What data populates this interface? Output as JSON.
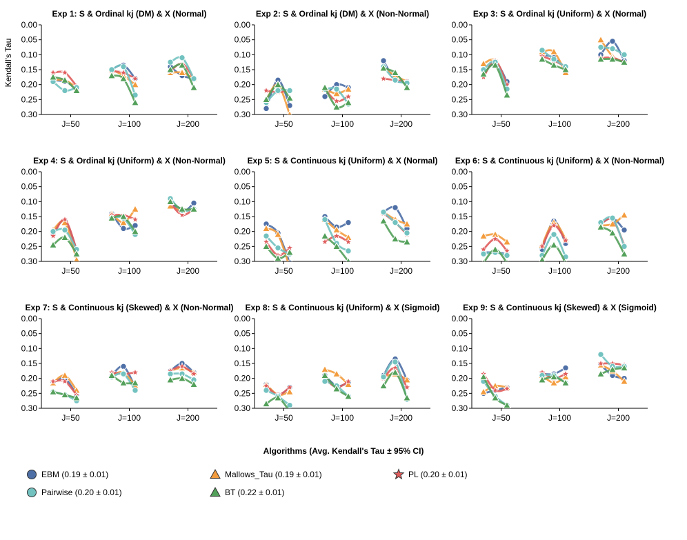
{
  "chart_data": {
    "type": "line",
    "ylabel": "Kendall's Tau",
    "y_inverted": true,
    "ylim": [
      0.3,
      0.0
    ],
    "yticks": [
      "0.00",
      "0.05",
      "0.10",
      "0.15",
      "0.20",
      "0.25",
      "0.30"
    ],
    "categories": [
      "J=50",
      "J=100",
      "J=200"
    ],
    "x_within_group": [
      0.1,
      0.3,
      0.5
    ],
    "series_order": [
      "EBM",
      "Mallows_Tau",
      "PL",
      "Pairwise",
      "BT"
    ],
    "colors": {
      "EBM": "#4e6fa6",
      "Mallows_Tau": "#f39c3e",
      "PL": "#e05c5c",
      "Pairwise": "#72c2c0",
      "BT": "#53a05a"
    },
    "markers": {
      "EBM": "circle",
      "Mallows_Tau": "triangle",
      "PL": "star",
      "Pairwise": "circle",
      "BT": "triangle"
    },
    "panels": [
      {
        "title": "Exp 1: S & Ordinal kj (DM) & X (Normal)",
        "series": {
          "EBM": [
            [
              0.185,
              0.19,
              0.21
            ],
            [
              0.15,
              0.135,
              0.18
            ],
            [
              0.14,
              0.17,
              0.18
            ]
          ],
          "Mallows_Tau": [
            [
              0.185,
              0.185,
              0.21
            ],
            [
              0.15,
              0.17,
              0.2
            ],
            [
              0.16,
              0.16,
              0.18
            ]
          ],
          "PL": [
            [
              0.16,
              0.16,
              0.205
            ],
            [
              0.155,
              0.16,
              0.18
            ],
            [
              0.155,
              0.13,
              0.18
            ]
          ],
          "Pairwise": [
            [
              0.19,
              0.22,
              0.21
            ],
            [
              0.15,
              0.14,
              0.235
            ],
            [
              0.125,
              0.11,
              0.18
            ]
          ],
          "BT": [
            [
              0.175,
              0.185,
              0.22
            ],
            [
              0.17,
              0.18,
              0.26
            ],
            [
              0.15,
              0.135,
              0.21
            ]
          ]
        }
      },
      {
        "title": "Exp 2: S & Ordinal kj (DM) & X (Non-Normal)",
        "series": {
          "EBM": [
            [
              0.28,
              0.185,
              0.27
            ],
            [
              0.24,
              0.2,
              0.21
            ],
            [
              0.12,
              0.185,
              0.19
            ]
          ],
          "Mallows_Tau": [
            [
              0.25,
              0.2,
              0.3
            ],
            [
              0.215,
              0.23,
              0.215
            ],
            [
              0.145,
              0.17,
              0.19
            ]
          ],
          "PL": [
            [
              0.22,
              0.225,
              0.22
            ],
            [
              0.215,
              0.255,
              0.24
            ],
            [
              0.18,
              0.185,
              0.19
            ]
          ],
          "Pairwise": [
            [
              0.26,
              0.22,
              0.22
            ],
            [
              0.215,
              0.215,
              0.265
            ],
            [
              0.14,
              0.185,
              0.195
            ]
          ],
          "BT": [
            [
              0.25,
              0.2,
              0.245
            ],
            [
              0.21,
              0.275,
              0.26
            ],
            [
              0.145,
              0.16,
              0.21
            ]
          ]
        }
      },
      {
        "title": "Exp 3: S & Ordinal kj (Uniform) & X (Normal)",
        "series": {
          "EBM": [
            [
              0.17,
              0.125,
              0.19
            ],
            [
              0.1,
              0.11,
              0.145
            ],
            [
              0.1,
              0.055,
              0.12
            ]
          ],
          "Mallows_Tau": [
            [
              0.13,
              0.12,
              0.205
            ],
            [
              0.09,
              0.09,
              0.16
            ],
            [
              0.05,
              0.105,
              0.125
            ]
          ],
          "PL": [
            [
              0.175,
              0.12,
              0.2
            ],
            [
              0.105,
              0.12,
              0.14
            ],
            [
              0.11,
              0.11,
              0.125
            ]
          ],
          "Pairwise": [
            [
              0.15,
              0.125,
              0.215
            ],
            [
              0.085,
              0.115,
              0.14
            ],
            [
              0.075,
              0.08,
              0.1
            ]
          ],
          "BT": [
            [
              0.165,
              0.135,
              0.235
            ],
            [
              0.115,
              0.135,
              0.15
            ],
            [
              0.115,
              0.115,
              0.125
            ]
          ]
        }
      },
      {
        "title": "Exp 4: S & Ordinal kj (Uniform) & X (Non-Normal)",
        "series": {
          "EBM": [
            [
              0.205,
              0.165,
              0.26
            ],
            [
              0.14,
              0.19,
              0.18
            ],
            [
              0.095,
              0.135,
              0.105
            ]
          ],
          "Mallows_Tau": [
            [
              0.195,
              0.17,
              0.295
            ],
            [
              0.14,
              0.17,
              0.125
            ],
            [
              0.115,
              0.13,
              0.125
            ]
          ],
          "PL": [
            [
              0.215,
              0.16,
              0.26
            ],
            [
              0.145,
              0.145,
              0.16
            ],
            [
              0.105,
              0.145,
              0.125
            ]
          ],
          "Pairwise": [
            [
              0.2,
              0.195,
              0.26
            ],
            [
              0.155,
              0.155,
              0.21
            ],
            [
              0.09,
              0.13,
              0.125
            ]
          ],
          "BT": [
            [
              0.245,
              0.22,
              0.275
            ],
            [
              0.155,
              0.15,
              0.2
            ],
            [
              0.1,
              0.125,
              0.125
            ]
          ]
        }
      },
      {
        "title": "Exp 5: S & Continuous kj (Uniform) & X (Normal)",
        "series": {
          "EBM": [
            [
              0.175,
              0.205,
              0.305
            ],
            [
              0.15,
              0.185,
              0.17
            ],
            [
              0.135,
              0.12,
              0.19
            ]
          ],
          "Mallows_Tau": [
            [
              0.19,
              0.21,
              0.32
            ],
            [
              0.16,
              0.195,
              0.22
            ],
            [
              0.135,
              0.16,
              0.175
            ]
          ],
          "PL": [
            [
              0.235,
              0.28,
              0.255
            ],
            [
              0.235,
              0.215,
              0.235
            ],
            [
              0.14,
              0.17,
              0.21
            ]
          ],
          "Pairwise": [
            [
              0.215,
              0.255,
              0.275
            ],
            [
              0.16,
              0.24,
              0.265
            ],
            [
              0.135,
              0.17,
              0.205
            ]
          ],
          "BT": [
            [
              0.25,
              0.29,
              0.27
            ],
            [
              0.215,
              0.25,
              0.3
            ],
            [
              0.165,
              0.225,
              0.235
            ]
          ]
        }
      },
      {
        "title": "Exp 6: S & Continuous kj (Uniform) & X (Non-Normal)",
        "series": {
          "EBM": [
            [
              0.27,
              0.27,
              0.275
            ],
            [
              0.26,
              0.165,
              0.24
            ],
            [
              0.175,
              0.155,
              0.195
            ]
          ],
          "Mallows_Tau": [
            [
              0.215,
              0.21,
              0.235
            ],
            [
              0.245,
              0.17,
              0.225
            ],
            [
              0.18,
              0.175,
              0.145
            ]
          ],
          "PL": [
            [
              0.26,
              0.225,
              0.265
            ],
            [
              0.25,
              0.18,
              0.23
            ],
            [
              0.175,
              0.16,
              0.245
            ]
          ],
          "Pairwise": [
            [
              0.275,
              0.27,
              0.28
            ],
            [
              0.28,
              0.21,
              0.285
            ],
            [
              0.17,
              0.155,
              0.25
            ]
          ],
          "BT": [
            [
              0.305,
              0.26,
              0.305
            ],
            [
              0.295,
              0.245,
              0.305
            ],
            [
              0.185,
              0.205,
              0.275
            ]
          ]
        }
      },
      {
        "title": "Exp 7: S & Continuous kj (Skewed) & X (Non-Normal)",
        "series": {
          "EBM": [
            [
              0.215,
              0.2,
              0.255
            ],
            [
              0.19,
              0.16,
              0.23
            ],
            [
              0.175,
              0.15,
              0.18
            ]
          ],
          "Mallows_Tau": [
            [
              0.215,
              0.19,
              0.24
            ],
            [
              0.19,
              0.18,
              0.225
            ],
            [
              0.175,
              0.165,
              0.18
            ]
          ],
          "PL": [
            [
              0.21,
              0.21,
              0.255
            ],
            [
              0.18,
              0.185,
              0.18
            ],
            [
              0.175,
              0.16,
              0.185
            ]
          ],
          "Pairwise": [
            [
              0.245,
              0.255,
              0.275
            ],
            [
              0.195,
              0.185,
              0.24
            ],
            [
              0.185,
              0.185,
              0.205
            ]
          ],
          "BT": [
            [
              0.245,
              0.255,
              0.265
            ],
            [
              0.19,
              0.215,
              0.215
            ],
            [
              0.205,
              0.2,
              0.22
            ]
          ]
        }
      },
      {
        "title": "Exp 8: S & Continuous kj (Uniform) & X (Sigmoid)",
        "series": {
          "EBM": [
            [
              0.22,
              0.255,
              0.23
            ],
            [
              0.19,
              0.225,
              0.215
            ],
            [
              0.19,
              0.135,
              0.205
            ]
          ],
          "Mallows_Tau": [
            [
              0.22,
              0.255,
              0.245
            ],
            [
              0.17,
              0.185,
              0.22
            ],
            [
              0.195,
              0.185,
              0.205
            ]
          ],
          "PL": [
            [
              0.225,
              0.255,
              0.23
            ],
            [
              0.2,
              0.23,
              0.21
            ],
            [
              0.2,
              0.165,
              0.23
            ]
          ],
          "Pairwise": [
            [
              0.24,
              0.26,
              0.29
            ],
            [
              0.21,
              0.225,
              0.26
            ],
            [
              0.195,
              0.145,
              0.27
            ]
          ],
          "BT": [
            [
              0.285,
              0.265,
              0.31
            ],
            [
              0.19,
              0.235,
              0.26
            ],
            [
              0.225,
              0.18,
              0.265
            ]
          ]
        }
      },
      {
        "title": "Exp 9: S & Continuous kj (Skewed) & X (Sigmoid)",
        "series": {
          "EBM": [
            [
              0.25,
              0.24,
              0.23
            ],
            [
              0.185,
              0.185,
              0.165
            ],
            [
              0.155,
              0.19,
              0.2
            ]
          ],
          "Mallows_Tau": [
            [
              0.245,
              0.225,
              0.23
            ],
            [
              0.19,
              0.215,
              0.195
            ],
            [
              0.155,
              0.175,
              0.21
            ]
          ],
          "PL": [
            [
              0.185,
              0.24,
              0.235
            ],
            [
              0.18,
              0.2,
              0.185
            ],
            [
              0.15,
              0.15,
              0.155
            ]
          ],
          "Pairwise": [
            [
              0.21,
              0.26,
              0.29
            ],
            [
              0.19,
              0.19,
              0.215
            ],
            [
              0.12,
              0.16,
              0.16
            ]
          ],
          "BT": [
            [
              0.195,
              0.265,
              0.29
            ],
            [
              0.205,
              0.195,
              0.215
            ],
            [
              0.185,
              0.17,
              0.165
            ]
          ]
        }
      }
    ],
    "legend": {
      "title": "Algorithms (Avg. Kendall's Tau ± 95% CI)",
      "placement": "bottom",
      "entries": [
        {
          "series": "EBM",
          "label": "EBM (0.19 ± 0.01)"
        },
        {
          "series": "Mallows_Tau",
          "label": "Mallows_Tau (0.19 ± 0.01)"
        },
        {
          "series": "PL",
          "label": "PL (0.20 ± 0.01)"
        },
        {
          "series": "Pairwise",
          "label": "Pairwise (0.20 ± 0.01)"
        },
        {
          "series": "BT",
          "label": "BT (0.22 ± 0.01)"
        }
      ]
    }
  }
}
